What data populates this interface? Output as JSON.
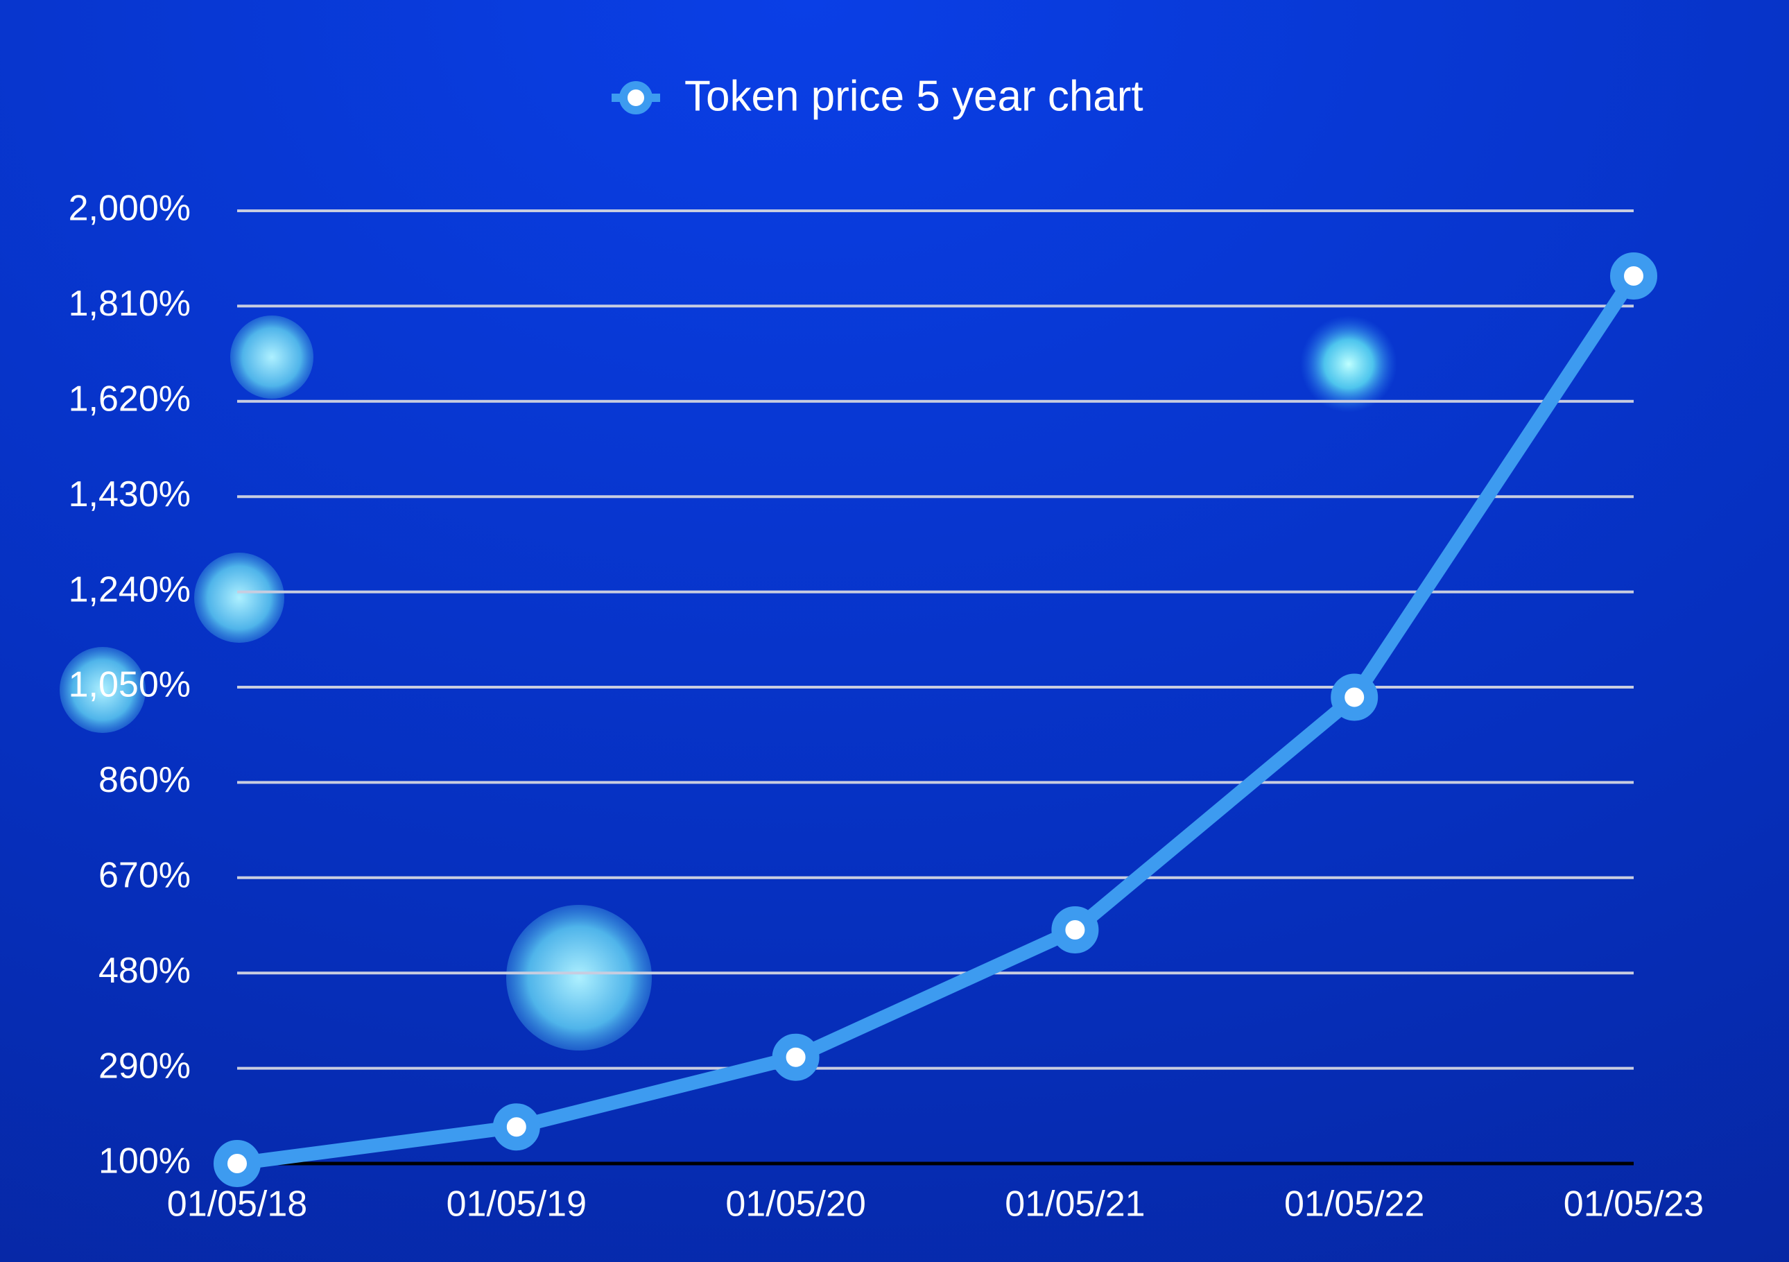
{
  "chart_data": {
    "type": "line",
    "categories": [
      "01/05/18",
      "01/05/19",
      "01/05/20",
      "01/05/21",
      "01/05/22",
      "01/05/23"
    ],
    "series": [
      {
        "name": "Token price 5 year chart",
        "color": "#3d9bf0",
        "values": [
          100,
          173,
          312,
          566,
          1030,
          1870
        ]
      }
    ],
    "ylim": [
      100,
      2000
    ],
    "yticks": [
      {
        "value": 100,
        "label": "100%"
      },
      {
        "value": 290,
        "label": "290%"
      },
      {
        "value": 480,
        "label": "480%"
      },
      {
        "value": 670,
        "label": "670%"
      },
      {
        "value": 860,
        "label": "860%"
      },
      {
        "value": 1050,
        "label": "1,050%"
      },
      {
        "value": 1240,
        "label": "1,240%"
      },
      {
        "value": 1430,
        "label": "1,430%"
      },
      {
        "value": 1620,
        "label": "1,620%"
      },
      {
        "value": 1810,
        "label": "1,810%"
      },
      {
        "value": 2000,
        "label": "2,000%"
      }
    ],
    "grid": true,
    "legend": "top"
  }
}
